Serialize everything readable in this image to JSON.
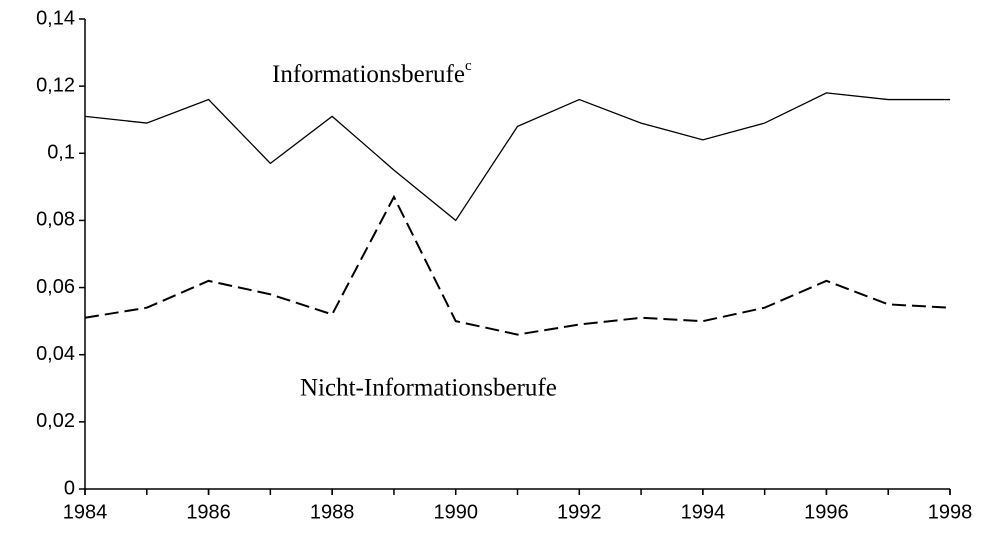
{
  "chart_data": {
    "type": "line",
    "x": [
      1984,
      1985,
      1986,
      1987,
      1988,
      1989,
      1990,
      1991,
      1992,
      1993,
      1994,
      1995,
      1996,
      1997,
      1998
    ],
    "series": [
      {
        "name": "Informationsberufe",
        "note": "c",
        "color": "#000000",
        "dash": false,
        "values": [
          0.111,
          0.109,
          0.116,
          0.097,
          0.111,
          0.095,
          0.08,
          0.108,
          0.116,
          0.109,
          0.104,
          0.109,
          0.118,
          0.116,
          0.116
        ]
      },
      {
        "name": "Nicht-Informationsberufe",
        "color": "#000000",
        "dash": true,
        "values": [
          0.051,
          0.054,
          0.062,
          0.058,
          0.052,
          0.087,
          0.05,
          0.046,
          0.049,
          0.051,
          0.05,
          0.054,
          0.062,
          0.055,
          0.054
        ]
      }
    ],
    "xlim": [
      1984,
      1998
    ],
    "xticks": [
      1984,
      1986,
      1988,
      1990,
      1992,
      1994,
      1996,
      1998
    ],
    "ylim": [
      0,
      0.14
    ],
    "yticks": [
      0,
      {
        "value": 0.02,
        "label": "0,02"
      },
      {
        "value": 0.04,
        "label": "0,04"
      },
      {
        "value": 0.06,
        "label": "0,06"
      },
      {
        "value": 0.08,
        "label": "0,08"
      },
      {
        "value": 0.1,
        "label": "0,1"
      },
      {
        "value": 0.12,
        "label": "0,12"
      },
      {
        "value": 0.14,
        "label": "0,14"
      }
    ],
    "grid": false
  }
}
